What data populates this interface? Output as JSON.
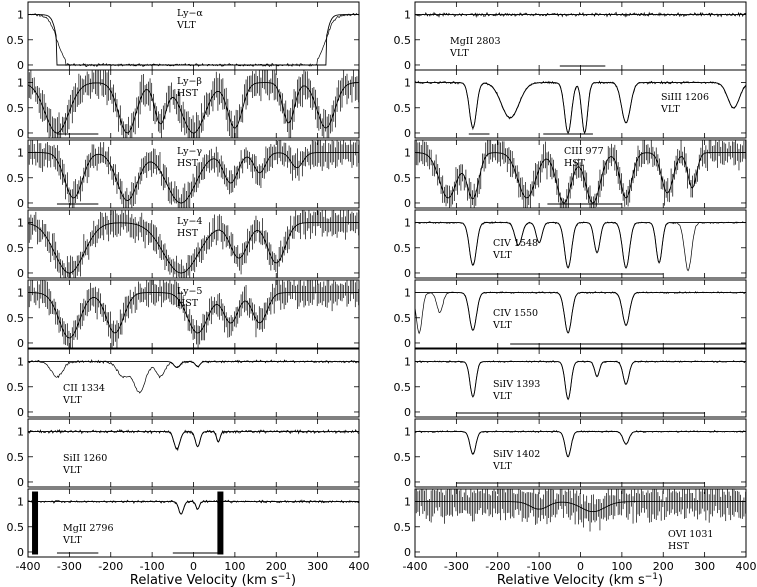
{
  "chart_data": {
    "type": "line",
    "xlabel_text": "Relative Velocity (km s",
    "xlabel_sup": "−1",
    "xlabel_close": ")",
    "xlim": [
      -400,
      400
    ],
    "ylim": [
      -0.1,
      1.25
    ],
    "x_ticks": [
      "-400",
      "-300",
      "-200",
      "-100",
      "0",
      "100",
      "200",
      "300",
      "400"
    ],
    "y_ticks": [
      "0",
      "0.5",
      "1"
    ],
    "panels": [
      {
        "col": 0,
        "row": 0,
        "line1": "Ly−α",
        "line2": "VLT",
        "label_pos": "top-center",
        "features": [
          {
            "v": -350,
            "w": 15,
            "d": 0.2
          }
        ],
        "saturated": [
          -330,
          320
        ],
        "noise": 0.03,
        "errorbars": false,
        "zones": []
      },
      {
        "col": 0,
        "row": 1,
        "line1": "Ly−β",
        "line2": "HST",
        "label_pos": "top-center",
        "features": [
          {
            "v": -330,
            "w": 40,
            "d": 1
          },
          {
            "v": -160,
            "w": 30,
            "d": 1
          },
          {
            "v": -80,
            "w": 20,
            "d": 0.8
          },
          {
            "v": 0,
            "w": 40,
            "d": 1
          },
          {
            "v": 100,
            "w": 25,
            "d": 0.9
          },
          {
            "v": 230,
            "w": 20,
            "d": 0.8
          },
          {
            "v": 320,
            "w": 30,
            "d": 0.9
          }
        ],
        "saturated": null,
        "noise": 0.3,
        "errorbars": true,
        "zones": [
          [
            -330,
            -230
          ]
        ]
      },
      {
        "col": 0,
        "row": 2,
        "line1": "Ly−γ",
        "line2": "HST",
        "label_pos": "top-center",
        "features": [
          {
            "v": -290,
            "w": 30,
            "d": 0.9
          },
          {
            "v": -160,
            "w": 35,
            "d": 0.95
          },
          {
            "v": -30,
            "w": 50,
            "d": 1
          },
          {
            "v": 90,
            "w": 25,
            "d": 0.6
          },
          {
            "v": 160,
            "w": 20,
            "d": 0.4
          },
          {
            "v": 250,
            "w": 20,
            "d": 0.3
          }
        ],
        "saturated": null,
        "noise": 0.25,
        "errorbars": true,
        "zones": [
          [
            -330,
            -230
          ]
        ]
      },
      {
        "col": 0,
        "row": 3,
        "line1": "Ly−4",
        "line2": "HST",
        "label_pos": "top-center",
        "features": [
          {
            "v": -300,
            "w": 50,
            "d": 1
          },
          {
            "v": -30,
            "w": 60,
            "d": 1
          },
          {
            "v": 110,
            "w": 30,
            "d": 0.7
          },
          {
            "v": 200,
            "w": 30,
            "d": 0.8
          }
        ],
        "saturated": null,
        "noise": 0.25,
        "errorbars": true,
        "zones": []
      },
      {
        "col": 0,
        "row": 4,
        "line1": "Ly−5",
        "line2": "HST",
        "label_pos": "top-center",
        "features": [
          {
            "v": -300,
            "w": 35,
            "d": 0.9
          },
          {
            "v": -190,
            "w": 30,
            "d": 0.8
          },
          {
            "v": 10,
            "w": 35,
            "d": 0.8
          },
          {
            "v": 90,
            "w": 25,
            "d": 0.6
          },
          {
            "v": 160,
            "w": 25,
            "d": 0.6
          }
        ],
        "saturated": null,
        "noise": 0.25,
        "errorbars": true,
        "zones": []
      },
      {
        "col": 0,
        "row": 5,
        "line1": "CII  1334",
        "line2": "VLT",
        "label_pos": "bottom-left",
        "features": [
          {
            "v": -40,
            "w": 10,
            "d": 0.12
          },
          {
            "v": 10,
            "w": 8,
            "d": 0.1
          }
        ],
        "data_features": [
          {
            "v": -330,
            "w": 20,
            "d": 0.3
          },
          {
            "v": -170,
            "w": 20,
            "d": 0.3
          },
          {
            "v": -130,
            "w": 20,
            "d": 0.6
          },
          {
            "v": -80,
            "w": 15,
            "d": 0.3
          }
        ],
        "saturated": null,
        "noise": 0.03,
        "errorbars": false,
        "zones": []
      },
      {
        "col": 0,
        "row": 6,
        "line1": "SiII  1260",
        "line2": "VLT",
        "label_pos": "bottom-left",
        "features": [
          {
            "v": -40,
            "w": 10,
            "d": 0.35
          },
          {
            "v": 10,
            "w": 8,
            "d": 0.3
          },
          {
            "v": 60,
            "w": 6,
            "d": 0.2
          }
        ],
        "saturated": null,
        "noise": 0.04,
        "errorbars": false,
        "zones": []
      },
      {
        "col": 0,
        "row": 7,
        "line1": "MgII  2796",
        "line2": "VLT",
        "label_pos": "bottom-left",
        "features": [
          {
            "v": -30,
            "w": 8,
            "d": 0.25
          },
          {
            "v": 10,
            "w": 6,
            "d": 0.15
          }
        ],
        "spikes": [
          -383,
          65
        ],
        "saturated": null,
        "noise": 0.03,
        "errorbars": false,
        "zones": [
          [
            -330,
            -230
          ],
          [
            -50,
            60
          ]
        ]
      },
      {
        "col": 1,
        "row": 0,
        "line1": "MgII  2803",
        "line2": "VLT",
        "label_pos": "bottom-left",
        "features": [],
        "saturated": null,
        "noise": 0.04,
        "errorbars": false,
        "zones": [
          [
            -50,
            60
          ]
        ]
      },
      {
        "col": 1,
        "row": 1,
        "line1": "SiIII  1206",
        "line2": "VLT",
        "label_pos": "mid-right",
        "features": [
          {
            "v": -260,
            "w": 12,
            "d": 0.9
          },
          {
            "v": -170,
            "w": 30,
            "d": 0.7
          },
          {
            "v": -30,
            "w": 12,
            "d": 1
          },
          {
            "v": 10,
            "w": 10,
            "d": 1
          },
          {
            "v": 110,
            "w": 15,
            "d": 0.8
          },
          {
            "v": 370,
            "w": 20,
            "d": 0.5
          }
        ],
        "saturated": null,
        "noise": 0.03,
        "errorbars": false,
        "zones": [
          [
            -270,
            -220
          ],
          [
            -90,
            30
          ]
        ]
      },
      {
        "col": 1,
        "row": 2,
        "line1": "CIII  977",
        "line2": "HST",
        "label_pos": "top-center",
        "features": [
          {
            "v": -320,
            "w": 30,
            "d": 0.9
          },
          {
            "v": -260,
            "w": 20,
            "d": 0.9
          },
          {
            "v": -130,
            "w": 30,
            "d": 0.9
          },
          {
            "v": -40,
            "w": 25,
            "d": 1
          },
          {
            "v": 30,
            "w": 25,
            "d": 1
          },
          {
            "v": 110,
            "w": 20,
            "d": 0.9
          },
          {
            "v": 210,
            "w": 20,
            "d": 0.8
          },
          {
            "v": 270,
            "w": 15,
            "d": 0.7
          }
        ],
        "saturated": null,
        "noise": 0.25,
        "errorbars": true,
        "zones": [
          [
            -80,
            100
          ]
        ]
      },
      {
        "col": 1,
        "row": 3,
        "line1": "CIV  1548",
        "line2": "VLT",
        "label_pos": "mid-center",
        "features": [
          {
            "v": -260,
            "w": 12,
            "d": 0.85
          },
          {
            "v": -150,
            "w": 12,
            "d": 0.45
          },
          {
            "v": -100,
            "w": 10,
            "d": 0.4
          },
          {
            "v": -30,
            "w": 12,
            "d": 0.9
          },
          {
            "v": 40,
            "w": 10,
            "d": 0.6
          },
          {
            "v": 110,
            "w": 12,
            "d": 0.9
          },
          {
            "v": 190,
            "w": 10,
            "d": 0.8
          }
        ],
        "data_features": [
          {
            "v": 260,
            "w": 12,
            "d": 0.95
          }
        ],
        "saturated": null,
        "noise": 0.02,
        "errorbars": false,
        "zones": [
          [
            -300,
            200
          ]
        ]
      },
      {
        "col": 1,
        "row": 4,
        "line1": "CIV  1550",
        "line2": "VLT",
        "label_pos": "mid-center",
        "features": [
          {
            "v": -260,
            "w": 12,
            "d": 0.75
          },
          {
            "v": -30,
            "w": 12,
            "d": 0.8
          },
          {
            "v": 110,
            "w": 12,
            "d": 0.65
          }
        ],
        "data_features": [
          {
            "v": -390,
            "w": 10,
            "d": 0.8
          },
          {
            "v": -340,
            "w": 10,
            "d": 0.4
          }
        ],
        "saturated": null,
        "noise": 0.02,
        "errorbars": false,
        "zones": [
          [
            -170,
            400
          ]
        ]
      },
      {
        "col": 1,
        "row": 5,
        "line1": "SiIV  1393",
        "line2": "VLT",
        "label_pos": "bottom-center",
        "features": [
          {
            "v": -260,
            "w": 10,
            "d": 0.7
          },
          {
            "v": -30,
            "w": 10,
            "d": 0.75
          },
          {
            "v": 40,
            "w": 8,
            "d": 0.3
          },
          {
            "v": 110,
            "w": 10,
            "d": 0.45
          }
        ],
        "saturated": null,
        "noise": 0.02,
        "errorbars": false,
        "zones": [
          [
            -300,
            300
          ]
        ]
      },
      {
        "col": 1,
        "row": 6,
        "line1": "SiIV  1402",
        "line2": "VLT",
        "label_pos": "bottom-center",
        "features": [
          {
            "v": -260,
            "w": 10,
            "d": 0.45
          },
          {
            "v": -30,
            "w": 10,
            "d": 0.5
          },
          {
            "v": 110,
            "w": 10,
            "d": 0.25
          }
        ],
        "saturated": null,
        "noise": 0.02,
        "errorbars": false,
        "zones": [
          [
            -300,
            300
          ]
        ]
      },
      {
        "col": 1,
        "row": 7,
        "line1": "OVI  1031",
        "line2": "HST",
        "label_pos": "bottom-right",
        "features": [
          {
            "v": -100,
            "w": 30,
            "d": 0.15
          },
          {
            "v": 30,
            "w": 40,
            "d": 0.2
          }
        ],
        "saturated": null,
        "noise": 0.3,
        "errorbars": true,
        "zones": []
      }
    ]
  }
}
